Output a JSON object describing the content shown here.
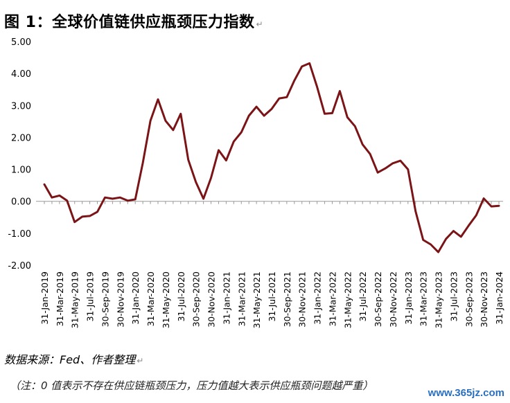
{
  "title": "图 1：全球价值链供应瓶颈压力指数",
  "source": "数据来源：Fed、作者整理",
  "note": "（注：0 值表示不存在供应链瓶颈压力，压力值越大表示供应瓶颈问题越严重）",
  "watermark": "www.365jz.com",
  "chart_data": {
    "type": "line",
    "title": "全球价值链供应瓶颈压力指数",
    "xlabel": "",
    "ylabel": "",
    "ylim": [
      -2.0,
      5.0
    ],
    "yticks": [
      "5.00",
      "4.00",
      "3.00",
      "2.00",
      "1.00",
      "0.00",
      "-1.00",
      "-2.00"
    ],
    "grid": false,
    "legend": "none",
    "line_color": "#7b1416",
    "x": [
      "31-Jan-2019",
      "28-Feb-2019",
      "31-Mar-2019",
      "30-Apr-2019",
      "31-May-2019",
      "30-Jun-2019",
      "31-Jul-2019",
      "31-Aug-2019",
      "30-Sep-2019",
      "31-Oct-2019",
      "30-Nov-2019",
      "31-Dec-2019",
      "31-Jan-2020",
      "29-Feb-2020",
      "31-Mar-2020",
      "30-Apr-2020",
      "31-May-2020",
      "30-Jun-2020",
      "31-Jul-2020",
      "31-Aug-2020",
      "30-Sep-2020",
      "31-Oct-2020",
      "30-Nov-2020",
      "31-Dec-2020",
      "31-Jan-2021",
      "28-Feb-2021",
      "31-Mar-2021",
      "30-Apr-2021",
      "31-May-2021",
      "30-Jun-2021",
      "31-Jul-2021",
      "31-Aug-2021",
      "30-Sep-2021",
      "31-Oct-2021",
      "30-Nov-2021",
      "31-Dec-2021",
      "31-Jan-2022",
      "28-Feb-2022",
      "31-Mar-2022",
      "30-Apr-2022",
      "31-May-2022",
      "30-Jun-2022",
      "31-Jul-2022",
      "31-Aug-2022",
      "30-Sep-2022",
      "31-Oct-2022",
      "30-Nov-2022",
      "31-Dec-2022",
      "31-Jan-2023",
      "28-Feb-2023",
      "31-Mar-2023",
      "30-Apr-2023",
      "31-May-2023",
      "30-Jun-2023",
      "31-Jul-2023",
      "31-Aug-2023",
      "30-Sep-2023",
      "31-Oct-2023",
      "30-Nov-2023",
      "31-Dec-2023",
      "31-Jan-2024"
    ],
    "xtick_labels": [
      "31-Jan-2019",
      "31-Mar-2019",
      "31-May-2019",
      "31-Jul-2019",
      "30-Sep-2019",
      "30-Nov-2019",
      "31-Jan-2020",
      "31-Mar-2020",
      "31-May-2020",
      "31-Jul-2020",
      "30-Sep-2020",
      "30-Nov-2020",
      "31-Jan-2021",
      "31-Mar-2021",
      "31-May-2021",
      "31-Jul-2021",
      "30-Sep-2021",
      "30-Nov-2021",
      "31-Jan-2022",
      "31-Mar-2022",
      "31-May-2022",
      "31-Jul-2022",
      "30-Sep-2022",
      "30-Nov-2022",
      "31-Jan-2023",
      "31-Mar-2023",
      "31-May-2023",
      "31-Jul-2023",
      "30-Sep-2023",
      "30-Nov-2023",
      "31-Jan-2024"
    ],
    "series": [
      {
        "name": "",
        "values": [
          0.53,
          0.12,
          0.18,
          0.02,
          -0.65,
          -0.48,
          -0.46,
          -0.33,
          0.12,
          0.08,
          0.12,
          0.02,
          0.06,
          1.2,
          2.52,
          3.19,
          2.52,
          2.23,
          2.74,
          1.3,
          0.6,
          0.08,
          0.73,
          1.6,
          1.28,
          1.87,
          2.16,
          2.68,
          2.96,
          2.68,
          2.89,
          3.22,
          3.26,
          3.78,
          4.22,
          4.32,
          3.58,
          2.74,
          2.76,
          3.45,
          2.63,
          2.35,
          1.78,
          1.48,
          0.9,
          1.03,
          1.19,
          1.27,
          1.0,
          -0.31,
          -1.21,
          -1.35,
          -1.59,
          -1.18,
          -0.93,
          -1.11,
          -0.76,
          -0.44,
          0.09,
          -0.16,
          -0.14
        ]
      }
    ]
  }
}
